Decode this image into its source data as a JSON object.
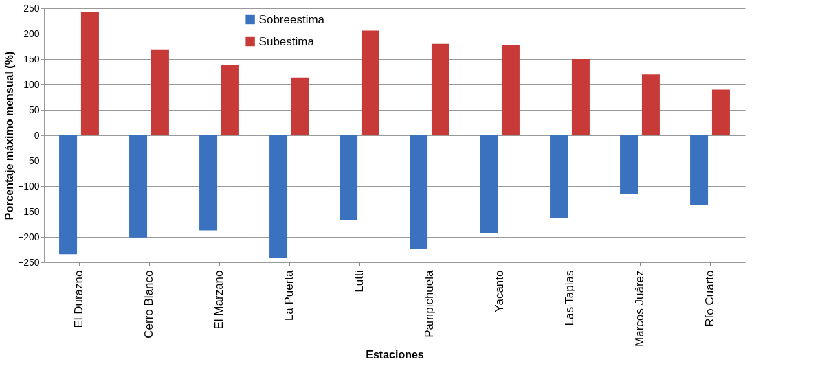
{
  "chart_data": {
    "type": "bar",
    "xlabel": "Estaciones",
    "ylabel": "Porcentaje máximo mensual (%)",
    "categories": [
      "El Durazno",
      "Cerro Blanco",
      "El Marzano",
      "La Puerta",
      "Lutti",
      "Pampichuela",
      "Yacanto",
      "Las Tapias",
      "Marcos Juárez",
      "Río Cuarto"
    ],
    "series": [
      {
        "name": "Sobreestima",
        "color": "#3a72c0",
        "values": [
          -234,
          -201,
          -187,
          -241,
          -167,
          -224,
          -193,
          -162,
          -115,
          -137
        ]
      },
      {
        "name": "Subestima",
        "color": "#c83a38",
        "values": [
          243,
          168,
          139,
          114,
          206,
          180,
          177,
          150,
          120,
          90
        ]
      }
    ],
    "ylim": [
      -250,
      250
    ],
    "yticks": [
      -250,
      -200,
      -150,
      -100,
      -50,
      0,
      50,
      100,
      150,
      200,
      250
    ],
    "grid": "y",
    "legend": "top"
  }
}
